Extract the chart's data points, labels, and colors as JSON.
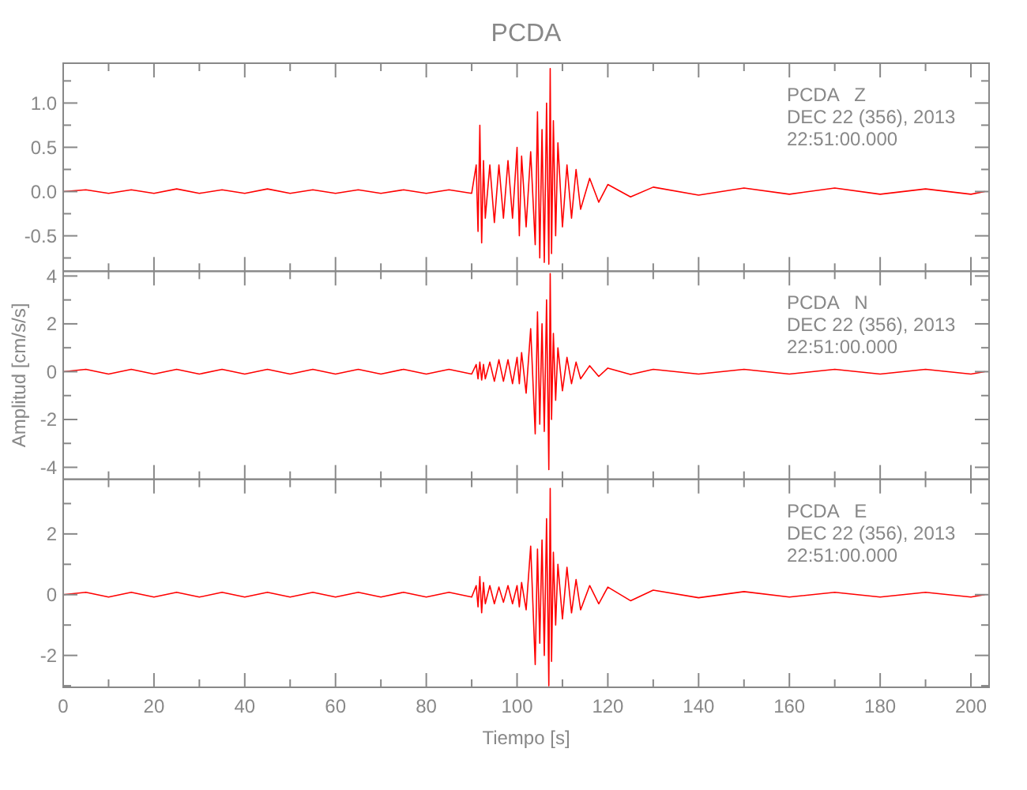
{
  "chart_data": [
    {
      "type": "line",
      "title": "PCDA",
      "annotations": [
        "PCDA   Z",
        "DEC 22 (356), 2013",
        "22:51:00.000"
      ],
      "tick_labels": "y",
      "grid": false,
      "xlim": [
        0,
        204
      ],
      "xticks": [
        0,
        {
          "value": 10,
          "label": null
        },
        20,
        {
          "value": 30,
          "label": null
        },
        40,
        {
          "value": 50,
          "label": null
        },
        60,
        {
          "value": 70,
          "label": null
        },
        80,
        {
          "value": 90,
          "label": null
        },
        100,
        {
          "value": 110,
          "label": null
        },
        120,
        {
          "value": 130,
          "label": null
        },
        140,
        {
          "value": 150,
          "label": null
        },
        160,
        {
          "value": 170,
          "label": null
        },
        180,
        {
          "value": 190,
          "label": null
        },
        200
      ],
      "ylim": [
        -0.9,
        1.45
      ],
      "yticks": [
        {
          "value": -0.75,
          "label": null
        },
        -0.5,
        {
          "value": -0.25,
          "label": null
        },
        {
          "value": 0,
          "label": "0.0"
        },
        {
          "value": 0.25,
          "label": null
        },
        0.5,
        {
          "value": 0.75,
          "label": null
        },
        {
          "value": 1,
          "label": "1.0"
        },
        {
          "value": 1.25,
          "label": null
        }
      ],
      "x": [
        0,
        5,
        10,
        15,
        20,
        25,
        30,
        35,
        40,
        45,
        50,
        55,
        60,
        65,
        70,
        75,
        80,
        85,
        90,
        91,
        91.4,
        91.8,
        92.2,
        92.6,
        93,
        94,
        95,
        96,
        97,
        98,
        99,
        100,
        100.5,
        101,
        102,
        103,
        104,
        104.5,
        105,
        105.5,
        106,
        106.5,
        107,
        107.3,
        107.6,
        108,
        108.5,
        109,
        110,
        111,
        112,
        113,
        114,
        116,
        118,
        120,
        125,
        130,
        140,
        150,
        160,
        170,
        180,
        190,
        200,
        203
      ],
      "series": [
        {
          "color": "#ff0000",
          "values": [
            0,
            0.02,
            -0.02,
            0.02,
            -0.02,
            0.03,
            -0.02,
            0.02,
            -0.02,
            0.03,
            -0.02,
            0.02,
            -0.02,
            0.02,
            -0.02,
            0.02,
            -0.02,
            0.02,
            -0.02,
            0.3,
            -0.45,
            0.75,
            -0.58,
            0.35,
            -0.3,
            0.3,
            -0.35,
            0.3,
            -0.3,
            0.35,
            -0.3,
            0.5,
            -0.5,
            0.4,
            -0.4,
            0.45,
            -0.6,
            0.9,
            -0.75,
            0.7,
            -0.8,
            1.0,
            -0.82,
            1.39,
            -0.7,
            0.8,
            -0.5,
            0.55,
            -0.4,
            0.3,
            -0.3,
            0.25,
            -0.2,
            0.15,
            -0.12,
            0.08,
            -0.06,
            0.05,
            -0.04,
            0.04,
            -0.03,
            0.04,
            -0.03,
            0.03,
            -0.03,
            0
          ]
        }
      ]
    },
    {
      "type": "line",
      "ylabel": "Amplitud [cm/s/s]",
      "annotations": [
        "PCDA   N",
        "DEC 22 (356), 2013",
        "22:51:00.000"
      ],
      "tick_labels": "y",
      "grid": false,
      "xlim": [
        0,
        204
      ],
      "xticks": [
        0,
        {
          "value": 10,
          "label": null
        },
        20,
        {
          "value": 30,
          "label": null
        },
        40,
        {
          "value": 50,
          "label": null
        },
        60,
        {
          "value": 70,
          "label": null
        },
        80,
        {
          "value": 90,
          "label": null
        },
        100,
        {
          "value": 110,
          "label": null
        },
        120,
        {
          "value": 130,
          "label": null
        },
        140,
        {
          "value": 150,
          "label": null
        },
        160,
        {
          "value": 170,
          "label": null
        },
        180,
        {
          "value": 190,
          "label": null
        },
        200
      ],
      "ylim": [
        -4.5,
        4.2
      ],
      "yticks": [
        -4,
        {
          "value": -3,
          "label": null
        },
        -2,
        {
          "value": -1,
          "label": null
        },
        0,
        {
          "value": 1,
          "label": null
        },
        2,
        {
          "value": 3,
          "label": null
        },
        4
      ],
      "x": [
        0,
        5,
        10,
        15,
        20,
        25,
        30,
        35,
        40,
        45,
        50,
        55,
        60,
        65,
        70,
        75,
        80,
        85,
        90,
        91,
        91.4,
        91.8,
        92.2,
        92.6,
        93,
        94,
        95,
        96,
        97,
        98,
        99,
        100,
        100.5,
        101,
        102,
        103,
        104,
        104.5,
        105,
        105.5,
        106,
        106.5,
        107,
        107.3,
        107.6,
        108,
        108.5,
        109,
        110,
        111,
        112,
        113,
        114,
        116,
        118,
        120,
        125,
        130,
        140,
        150,
        160,
        170,
        180,
        190,
        200,
        203
      ],
      "series": [
        {
          "color": "#ff0000",
          "values": [
            0,
            0.1,
            -0.1,
            0.1,
            -0.1,
            0.1,
            -0.1,
            0.1,
            -0.1,
            0.1,
            -0.1,
            0.1,
            -0.1,
            0.1,
            -0.1,
            0.1,
            -0.1,
            0.1,
            -0.1,
            0.3,
            -0.3,
            0.4,
            -0.35,
            0.3,
            -0.3,
            0.4,
            -0.4,
            0.5,
            -0.4,
            0.5,
            -0.5,
            0.6,
            -0.5,
            0.8,
            -0.9,
            1.8,
            -2.6,
            2.5,
            -2.2,
            2.0,
            -2.5,
            3.0,
            -4.1,
            4.1,
            -2.0,
            1.6,
            -1.2,
            1.0,
            -0.8,
            0.6,
            -0.5,
            0.4,
            -0.3,
            0.25,
            -0.2,
            0.15,
            -0.12,
            0.1,
            -0.1,
            0.1,
            -0.1,
            0.1,
            -0.1,
            0.1,
            -0.1,
            0
          ]
        }
      ]
    },
    {
      "type": "line",
      "xlabel": "Tiempo [s]",
      "annotations": [
        "PCDA   E",
        "DEC 22 (356), 2013",
        "22:51:00.000"
      ],
      "grid": false,
      "xlim": [
        0,
        204
      ],
      "xticks": [
        0,
        {
          "value": 10,
          "label": null
        },
        20,
        {
          "value": 30,
          "label": null
        },
        40,
        {
          "value": 50,
          "label": null
        },
        60,
        {
          "value": 70,
          "label": null
        },
        80,
        {
          "value": 90,
          "label": null
        },
        100,
        {
          "value": 110,
          "label": null
        },
        120,
        {
          "value": 130,
          "label": null
        },
        140,
        {
          "value": 150,
          "label": null
        },
        160,
        {
          "value": 170,
          "label": null
        },
        180,
        {
          "value": 190,
          "label": null
        },
        200
      ],
      "ylim": [
        -3.05,
        3.8
      ],
      "yticks": [
        {
          "value": -3,
          "label": null
        },
        -2,
        {
          "value": -1,
          "label": null
        },
        0,
        {
          "value": 1,
          "label": null
        },
        2,
        {
          "value": 3,
          "label": null
        }
      ],
      "x": [
        0,
        5,
        10,
        15,
        20,
        25,
        30,
        35,
        40,
        45,
        50,
        55,
        60,
        65,
        70,
        75,
        80,
        85,
        90,
        91,
        91.4,
        91.8,
        92.2,
        92.6,
        93,
        94,
        95,
        96,
        97,
        98,
        99,
        100,
        100.5,
        101,
        102,
        103,
        104,
        104.5,
        105,
        105.5,
        106,
        106.5,
        107,
        107.3,
        107.6,
        108,
        108.5,
        109,
        110,
        111,
        112,
        113,
        114,
        116,
        118,
        120,
        125,
        130,
        140,
        150,
        160,
        170,
        180,
        190,
        200,
        203
      ],
      "series": [
        {
          "color": "#ff0000",
          "values": [
            0,
            0.08,
            -0.08,
            0.08,
            -0.08,
            0.08,
            -0.08,
            0.08,
            -0.08,
            0.08,
            -0.08,
            0.08,
            -0.08,
            0.08,
            -0.08,
            0.08,
            -0.08,
            0.08,
            -0.08,
            0.3,
            -0.4,
            0.6,
            -0.6,
            0.4,
            -0.3,
            0.3,
            -0.3,
            0.25,
            -0.25,
            0.3,
            -0.3,
            0.3,
            -0.4,
            0.4,
            -0.5,
            1.6,
            -2.3,
            1.5,
            -1.6,
            1.8,
            -2.0,
            2.5,
            -3.0,
            3.5,
            -2.2,
            1.4,
            -1.0,
            1.0,
            -0.8,
            0.9,
            -0.6,
            0.5,
            -0.5,
            0.3,
            -0.3,
            0.25,
            -0.2,
            0.15,
            -0.1,
            0.1,
            -0.08,
            0.08,
            -0.08,
            0.08,
            -0.08,
            0
          ]
        }
      ]
    }
  ]
}
